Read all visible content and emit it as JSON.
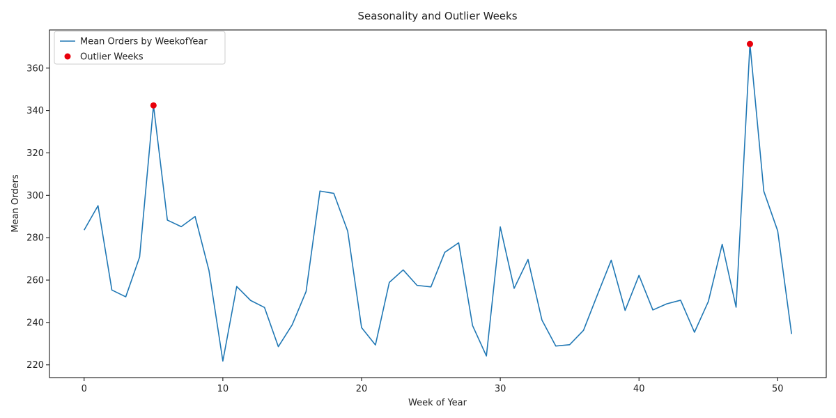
{
  "chart_data": {
    "type": "line",
    "title": "Seasonality and Outlier Weeks",
    "xlabel": "Week of Year",
    "ylabel": "Mean Orders",
    "xlim": [
      -2.5,
      53.5
    ],
    "ylim": [
      214,
      378
    ],
    "xticks": [
      0,
      10,
      20,
      30,
      40,
      50
    ],
    "yticks": [
      220,
      240,
      260,
      280,
      300,
      320,
      340,
      360
    ],
    "grid": false,
    "legend_position": "top-left",
    "series": [
      {
        "name": "Mean Orders by WeekofYear",
        "kind": "line",
        "color": "#1f77b4",
        "x": [
          0,
          1,
          2,
          3,
          4,
          5,
          6,
          7,
          8,
          9,
          10,
          11,
          12,
          13,
          14,
          15,
          16,
          17,
          18,
          19,
          20,
          21,
          22,
          23,
          24,
          25,
          26,
          27,
          28,
          29,
          30,
          31,
          32,
          33,
          34,
          35,
          36,
          37,
          38,
          39,
          40,
          41,
          42,
          43,
          44,
          45,
          46,
          47,
          48,
          49,
          50,
          51
        ],
        "values": [
          283.6,
          295.1,
          255.3,
          252.1,
          270.9,
          342.4,
          288.3,
          285.2,
          290.0,
          264.5,
          221.8,
          257.0,
          250.4,
          247.1,
          228.6,
          238.9,
          254.6,
          302.0,
          300.9,
          283.1,
          237.6,
          229.4,
          258.9,
          264.8,
          257.5,
          256.8,
          273.1,
          277.6,
          238.6,
          224.2,
          285.1,
          256.1,
          269.7,
          241.2,
          228.9,
          229.5,
          236.3,
          253.0,
          269.4,
          245.7,
          262.2,
          245.9,
          248.8,
          250.5,
          235.4,
          249.9,
          276.9,
          247.2,
          371.4,
          301.9,
          283.2,
          234.6
        ]
      },
      {
        "name": "Outlier Weeks",
        "kind": "scatter",
        "color": "#e8000b",
        "x": [
          5,
          48
        ],
        "values": [
          342.4,
          371.4
        ]
      }
    ]
  }
}
